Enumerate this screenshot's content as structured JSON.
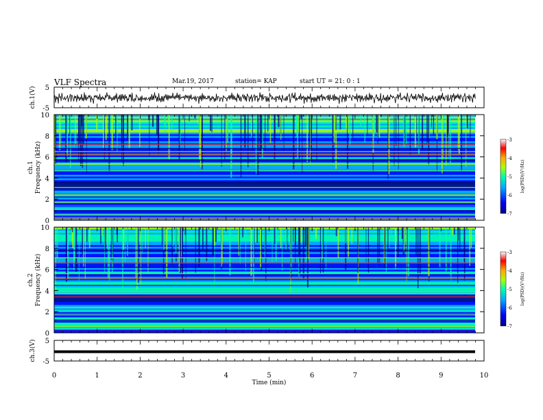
{
  "header": {
    "title": "VLF Spectra",
    "date": "Mar.19, 2017",
    "station": "station= KAP",
    "start_ut": "start  UT =   21: 0  : 1"
  },
  "colors": {
    "colormap": [
      "#000080",
      "#0000ff",
      "#00aaff",
      "#00ffaa",
      "#aaff00",
      "#ffaa00",
      "#ff0000",
      "#ffffff"
    ],
    "waveform": "#000000"
  },
  "chart_data": [
    {
      "type": "line",
      "panel": "ch1-waveform",
      "ylabel": "ch.1(V)",
      "ylim": [
        -5,
        5
      ],
      "yticks": [
        "-5",
        "5"
      ],
      "xlim": [
        0,
        10
      ],
      "series": [
        {
          "description_values": "noisy waveform oscillating around -0.5 V, amplitude roughly ±2 V",
          "values": [
            -0.5,
            0.8,
            -1.5,
            1.2,
            -0.8,
            0.3,
            -1.9,
            1.0,
            -0.2,
            0.6,
            -1.2,
            1.5,
            -0.6,
            0.2,
            -1.0,
            0.9,
            -1.6,
            0.4,
            -0.3,
            1.1,
            -1.4,
            0.7,
            -0.9,
            0.5,
            -1.1,
            1.3,
            -0.4,
            0.1,
            -1.7,
            0.8,
            -0.7,
            1.2,
            -1.3,
            0.2,
            -0.5,
            0.9,
            -1.8,
            0.6,
            -0.1,
            1.0,
            -1.2,
            0.4,
            -0.8,
            1.4,
            -0.6,
            0.3,
            -1.5,
            0.7,
            -0.9,
            1.1
          ]
        }
      ]
    },
    {
      "type": "heatmap",
      "panel": "ch1-spectrogram",
      "ylabel": "ch.1\nFrequency (kHz)",
      "ylim": [
        0,
        10
      ],
      "yticks": [
        "0",
        "2",
        "4",
        "6",
        "8",
        "10"
      ],
      "xlim": [
        0,
        10
      ],
      "colorbar": {
        "label": "log(PSD)(V²/Hz)",
        "range": [
          -7,
          -3
        ],
        "ticks": [
          "-3",
          "-4",
          "-5",
          "-6",
          "-7"
        ]
      },
      "bands_khz": [
        0.2,
        0.5,
        0.9,
        1.4,
        1.7,
        2.2,
        2.5,
        3.1,
        3.6,
        4.8,
        5.3,
        5.7,
        6.2,
        6.5,
        6.8,
        7.2
      ]
    },
    {
      "type": "heatmap",
      "panel": "ch2-spectrogram",
      "ylabel": "ch.2\nFrequency (kHz)",
      "ylim": [
        0,
        10
      ],
      "yticks": [
        "0",
        "2",
        "4",
        "6",
        "8",
        "10"
      ],
      "xlim": [
        0,
        10
      ],
      "colorbar": {
        "label": "log(PSD)(V²/Hz)",
        "range": [
          -7,
          -3
        ],
        "ticks": [
          "-3",
          "-4",
          "-5",
          "-6",
          "-7"
        ]
      },
      "bands_khz": [
        0.3,
        0.6,
        1.2,
        1.8,
        2.4,
        3.0,
        3.4,
        3.9,
        4.5,
        5.1,
        5.6,
        6.2,
        6.6,
        7.1,
        7.8
      ]
    },
    {
      "type": "line",
      "panel": "ch3-waveform",
      "ylabel": "ch.3(V)",
      "xlabel": "Time (min)",
      "ylim": [
        -5,
        5
      ],
      "yticks": [
        "-5",
        "5"
      ],
      "xlim": [
        0,
        10
      ],
      "xticks": [
        "0",
        "1",
        "2",
        "3",
        "4",
        "5",
        "6",
        "7",
        "8",
        "9",
        "10"
      ],
      "series": [
        {
          "values": [
            -0.5,
            -0.5
          ]
        }
      ]
    }
  ]
}
